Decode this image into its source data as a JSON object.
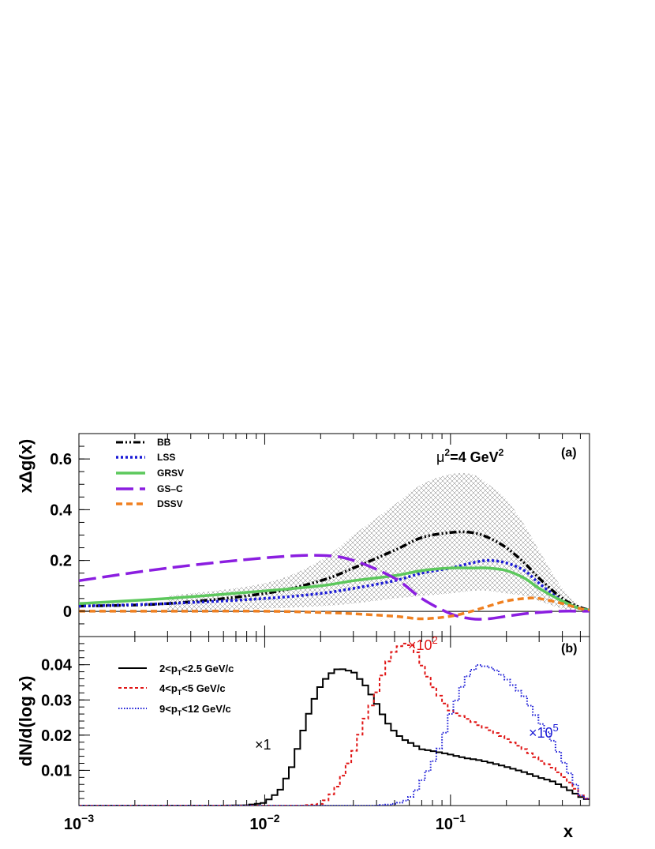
{
  "chart_data": [
    {
      "type": "line",
      "panel": "(a)",
      "ylabel": "xΔg(x)",
      "annotation": "μ²=4 GeV²",
      "annotation_parts": {
        "mu": "μ",
        "two": "2",
        "mid": "=4 GeV",
        "two2": "2"
      },
      "xscale": "log",
      "xlim": [
        0.001,
        0.56
      ],
      "ylim": [
        -0.1,
        0.7
      ],
      "yticks": [
        "0",
        "0.2",
        "0.4",
        "0.6"
      ],
      "x": [
        0.001,
        0.003,
        0.01,
        0.02,
        0.03,
        0.05,
        0.07,
        0.1,
        0.13,
        0.16,
        0.2,
        0.25,
        0.3,
        0.4,
        0.5,
        0.56
      ],
      "series": [
        {
          "name": "BB",
          "color": "#000000",
          "style": "dashdotdot",
          "values": [
            0.02,
            0.03,
            0.07,
            0.12,
            0.17,
            0.24,
            0.29,
            0.31,
            0.31,
            0.29,
            0.25,
            0.19,
            0.13,
            0.05,
            0.015,
            0.005
          ]
        },
        {
          "name": "LSS",
          "color": "#1a1ad6",
          "style": "dotted",
          "values": [
            0.02,
            0.03,
            0.05,
            0.07,
            0.09,
            0.12,
            0.15,
            0.17,
            0.19,
            0.2,
            0.19,
            0.16,
            0.11,
            0.04,
            0.01,
            0.005
          ]
        },
        {
          "name": "GRSV",
          "color": "#5cc85c",
          "style": "solid",
          "values": [
            0.03,
            0.05,
            0.08,
            0.1,
            0.12,
            0.14,
            0.16,
            0.17,
            0.17,
            0.17,
            0.16,
            0.13,
            0.09,
            0.04,
            0.01,
            0.005
          ]
        },
        {
          "name": "GS–C",
          "color": "#8b1ee0",
          "style": "longdash",
          "values": [
            0.12,
            0.17,
            0.21,
            0.22,
            0.2,
            0.13,
            0.05,
            -0.01,
            -0.03,
            -0.03,
            -0.02,
            -0.01,
            -0.005,
            0,
            0,
            0
          ]
        },
        {
          "name": "DSSV",
          "color": "#f08020",
          "style": "dashed",
          "values": [
            0,
            0,
            0,
            -0.005,
            -0.01,
            -0.02,
            -0.03,
            -0.02,
            0,
            0.02,
            0.04,
            0.05,
            0.05,
            0.03,
            0.01,
            0.005
          ]
        }
      ],
      "uncertainty_band": {
        "x": [
          0.003,
          0.01,
          0.02,
          0.03,
          0.05,
          0.07,
          0.1,
          0.13,
          0.16,
          0.2,
          0.25,
          0.3,
          0.4,
          0.5,
          0.56
        ],
        "upper": [
          0.06,
          0.11,
          0.2,
          0.3,
          0.42,
          0.5,
          0.54,
          0.54,
          0.5,
          0.44,
          0.34,
          0.24,
          0.09,
          0.02,
          0.005
        ],
        "lower": [
          0.0,
          0.01,
          0.02,
          0.03,
          0.05,
          0.06,
          0.07,
          0.08,
          0.08,
          0.07,
          0.06,
          0.04,
          0.01,
          0.0,
          0.0
        ]
      }
    },
    {
      "type": "histogram",
      "panel": "(b)",
      "ylabel": "dN/d(log x)",
      "xlabel": "x",
      "xscale": "log",
      "xlim": [
        0.001,
        0.56
      ],
      "ylim": [
        0,
        0.048
      ],
      "yticks": [
        "0.01",
        "0.02",
        "0.03",
        "0.04"
      ],
      "xticks": [
        {
          "value": 0.001,
          "base": "10",
          "exp": "−3"
        },
        {
          "value": 0.01,
          "base": "10",
          "exp": "−2"
        },
        {
          "value": 0.1,
          "base": "10",
          "exp": "−1"
        }
      ],
      "x": [
        0.001,
        0.006,
        0.008,
        0.01,
        0.012,
        0.014,
        0.016,
        0.018,
        0.02,
        0.022,
        0.025,
        0.03,
        0.035,
        0.04,
        0.045,
        0.05,
        0.055,
        0.06,
        0.065,
        0.07,
        0.08,
        0.09,
        0.1,
        0.12,
        0.14,
        0.17,
        0.2,
        0.25,
        0.3,
        0.35,
        0.4,
        0.45,
        0.5,
        0.56
      ],
      "series": [
        {
          "name": "2<p_T<2.5 GeV/c",
          "color": "#000000",
          "style": "solid",
          "scale_label": "×1",
          "values": [
            0,
            0,
            0.0001,
            0.0008,
            0.004,
            0.011,
            0.021,
            0.029,
            0.034,
            0.037,
            0.039,
            0.038,
            0.034,
            0.029,
            0.024,
            0.021,
            0.019,
            0.018,
            0.017,
            0.016,
            0.0155,
            0.015,
            0.0145,
            0.0135,
            0.013,
            0.012,
            0.011,
            0.0095,
            0.008,
            0.007,
            0.0055,
            0.004,
            0.0025,
            0.0015
          ]
        },
        {
          "name": "4<p_T<5 GeV/c",
          "color": "#e01515",
          "style": "dashed",
          "scale_label": "×10²",
          "values": [
            0,
            0,
            0,
            0,
            0,
            0,
            0,
            0.0002,
            0.0005,
            0.002,
            0.006,
            0.015,
            0.025,
            0.032,
            0.04,
            0.044,
            0.046,
            0.046,
            0.044,
            0.04,
            0.034,
            0.03,
            0.027,
            0.025,
            0.023,
            0.021,
            0.019,
            0.016,
            0.013,
            0.011,
            0.0085,
            0.006,
            0.003,
            0.0015
          ]
        },
        {
          "name": "9<p_T<12 GeV/c",
          "color": "#1a1ad6",
          "style": "dotted",
          "scale_label": "×10⁵",
          "values": [
            0,
            0,
            0,
            0,
            0,
            0,
            0,
            0,
            0,
            0,
            0,
            0,
            0,
            0,
            0.0002,
            0.0005,
            0.001,
            0.002,
            0.004,
            0.007,
            0.012,
            0.018,
            0.026,
            0.036,
            0.04,
            0.039,
            0.036,
            0.031,
            0.024,
            0.019,
            0.013,
            0.008,
            0.003,
            0.0015
          ]
        }
      ],
      "legend": [
        {
          "label": "2<p",
          "sub": "T",
          "rest": "<2.5 GeV/c"
        },
        {
          "label": "4<p",
          "sub": "T",
          "rest": "<5 GeV/c"
        },
        {
          "label": "9<p",
          "sub": "T",
          "rest": "<12 GeV/c"
        }
      ],
      "annotations": {
        "black": {
          "base": "×1",
          "exp": ""
        },
        "red": {
          "base": "×10",
          "exp": "2"
        },
        "blue": {
          "base": "×10",
          "exp": "5"
        }
      }
    }
  ]
}
